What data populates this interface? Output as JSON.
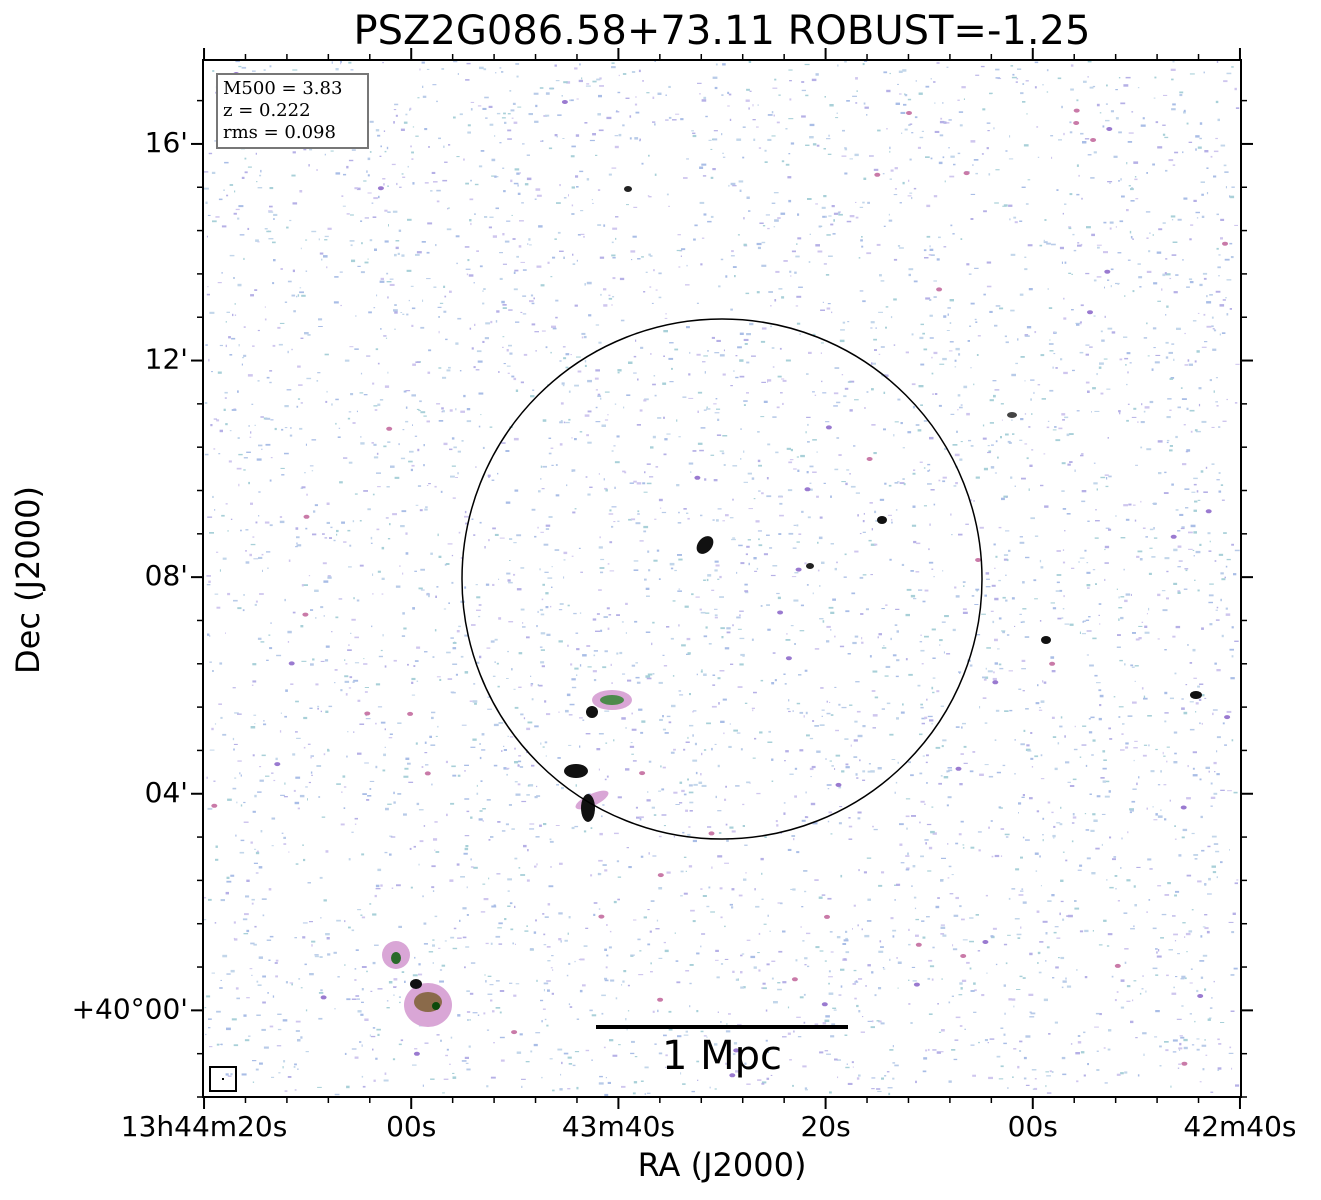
{
  "chart_data": {
    "type": "image",
    "title": "PSZ2G086.58+73.11 ROBUST=-1.25",
    "xlabel": "RA (J2000)",
    "ylabel": "Dec (J2000)",
    "xlim": [
      49460.1,
      49359.9
    ],
    "xticks": [
      {
        "value": 49460,
        "label": "13h44m20s"
      },
      {
        "value": 49440,
        "label": "00s"
      },
      {
        "value": 49420,
        "label": "43m40s"
      },
      {
        "value": 49400,
        "label": "20s"
      },
      {
        "value": 49380,
        "label": "00s"
      },
      {
        "value": 49360,
        "label": "42m40s"
      }
    ],
    "ylim": [
      -1.6,
      17.55
    ],
    "yticks": [
      {
        "value": 0,
        "label": "+40°00'"
      },
      {
        "value": 4,
        "label": "04'"
      },
      {
        "value": 8,
        "label": "08'"
      },
      {
        "value": 12,
        "label": "12'"
      },
      {
        "value": 16,
        "label": "16'"
      }
    ],
    "annotations": [
      "M500 = 3.83",
      "z = 0.222",
      "rms = 0.098"
    ],
    "scale_bar_label": "1 Mpc"
  }
}
